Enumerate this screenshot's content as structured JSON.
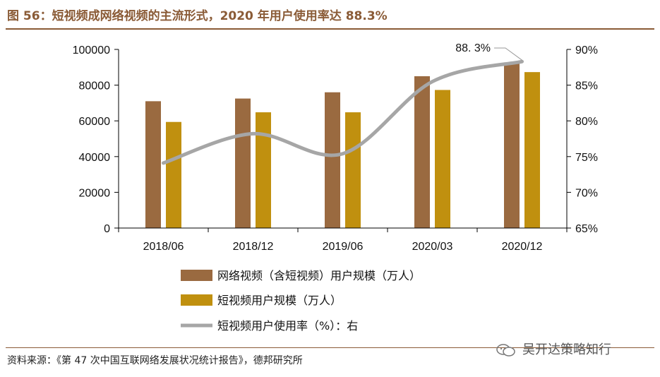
{
  "title": "图 56：短视频成网络视频的主流形式，2020 年用户使用率达 88.3%",
  "source": "资料来源：《第 47 次中国互联网络发展状况统计报告》，德邦研究所",
  "watermark": "吴开达策略知行",
  "colors": {
    "network_bar": "#9a6a40",
    "short_bar": "#c0900f",
    "rate_line": "#a6a6a6",
    "title": "#8a5b36"
  },
  "chart_data": {
    "type": "bar",
    "categories": [
      "2018/06",
      "2018/12",
      "2019/06",
      "2020/03",
      "2020/12"
    ],
    "series": [
      {
        "name": "网络视频（含短视频）用户规模（万人）",
        "kind": "bar",
        "axis": "left",
        "values": [
          71000,
          72500,
          76000,
          85000,
          92700
        ]
      },
      {
        "name": "短视频用户规模（万人）",
        "kind": "bar",
        "axis": "left",
        "values": [
          59400,
          64800,
          64800,
          77300,
          87300
        ]
      },
      {
        "name": "短视频用户使用率（%）：右",
        "kind": "line",
        "axis": "right",
        "values": [
          74.1,
          78.2,
          75.4,
          85.5,
          88.3
        ]
      }
    ],
    "left_axis": {
      "ylim": [
        0,
        100000
      ],
      "ticks": [
        "0",
        "20000",
        "40000",
        "60000",
        "80000",
        "100000"
      ]
    },
    "right_axis": {
      "ylim": [
        65,
        90
      ],
      "ticks": [
        "65%",
        "70%",
        "75%",
        "80%",
        "85%",
        "90%"
      ]
    },
    "annotation": "88. 3%",
    "legend_position": "bottom"
  }
}
